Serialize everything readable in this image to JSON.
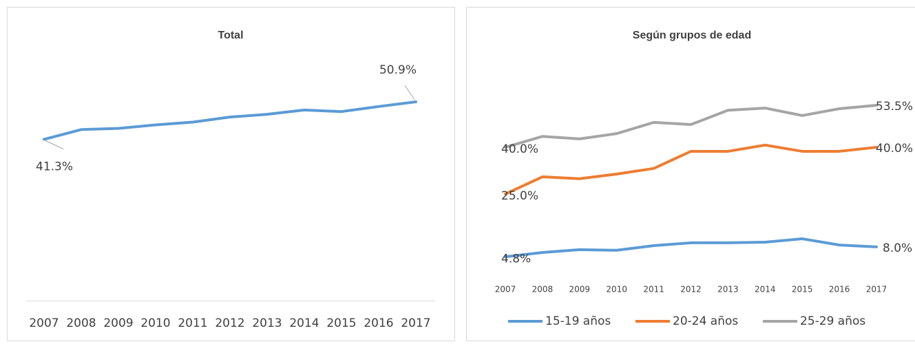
{
  "chart_data": [
    {
      "type": "line",
      "title": "Total",
      "categories": [
        "2007",
        "2008",
        "2009",
        "2010",
        "2011",
        "2012",
        "2013",
        "2014",
        "2015",
        "2016",
        "2017"
      ],
      "series": [
        {
          "name": "Total",
          "color": "#5b9bd5",
          "values": [
            41.3,
            43.8,
            44.1,
            45.0,
            45.7,
            47.0,
            47.7,
            48.8,
            48.4,
            49.7,
            50.9
          ],
          "value_labels": [
            "41.3%",
            null,
            null,
            null,
            null,
            null,
            null,
            null,
            null,
            null,
            "50.9%"
          ]
        }
      ]
    },
    {
      "type": "line",
      "title": "Según grupos de edad",
      "categories": [
        "2007",
        "2008",
        "2009",
        "2010",
        "2011",
        "2012",
        "2013",
        "2014",
        "2015",
        "2016",
        "2017"
      ],
      "legend": "bottom",
      "series": [
        {
          "name": "15-19 años",
          "color": "#5b9bd5",
          "values": [
            4.8,
            6.2,
            7.1,
            6.9,
            8.4,
            9.3,
            9.3,
            9.5,
            10.6,
            8.6,
            8.0
          ],
          "value_labels": [
            "4.8%",
            null,
            null,
            null,
            null,
            null,
            null,
            null,
            null,
            null,
            "8.0%"
          ]
        },
        {
          "name": "20-24 años",
          "color": "#ed7d31",
          "values": [
            25.0,
            30.5,
            29.9,
            31.4,
            33.2,
            38.7,
            38.7,
            40.7,
            38.7,
            38.7,
            40.0
          ],
          "value_labels": [
            "25.0%",
            null,
            null,
            null,
            null,
            null,
            null,
            null,
            null,
            null,
            "40.0%"
          ]
        },
        {
          "name": "25-29 años",
          "color": "#a5a5a5",
          "values": [
            40.0,
            43.5,
            42.7,
            44.4,
            48.0,
            47.3,
            51.9,
            52.6,
            50.2,
            52.4,
            53.5
          ],
          "value_labels": [
            "40.0%",
            null,
            null,
            null,
            null,
            null,
            null,
            null,
            null,
            null,
            "53.5%"
          ]
        }
      ]
    }
  ]
}
